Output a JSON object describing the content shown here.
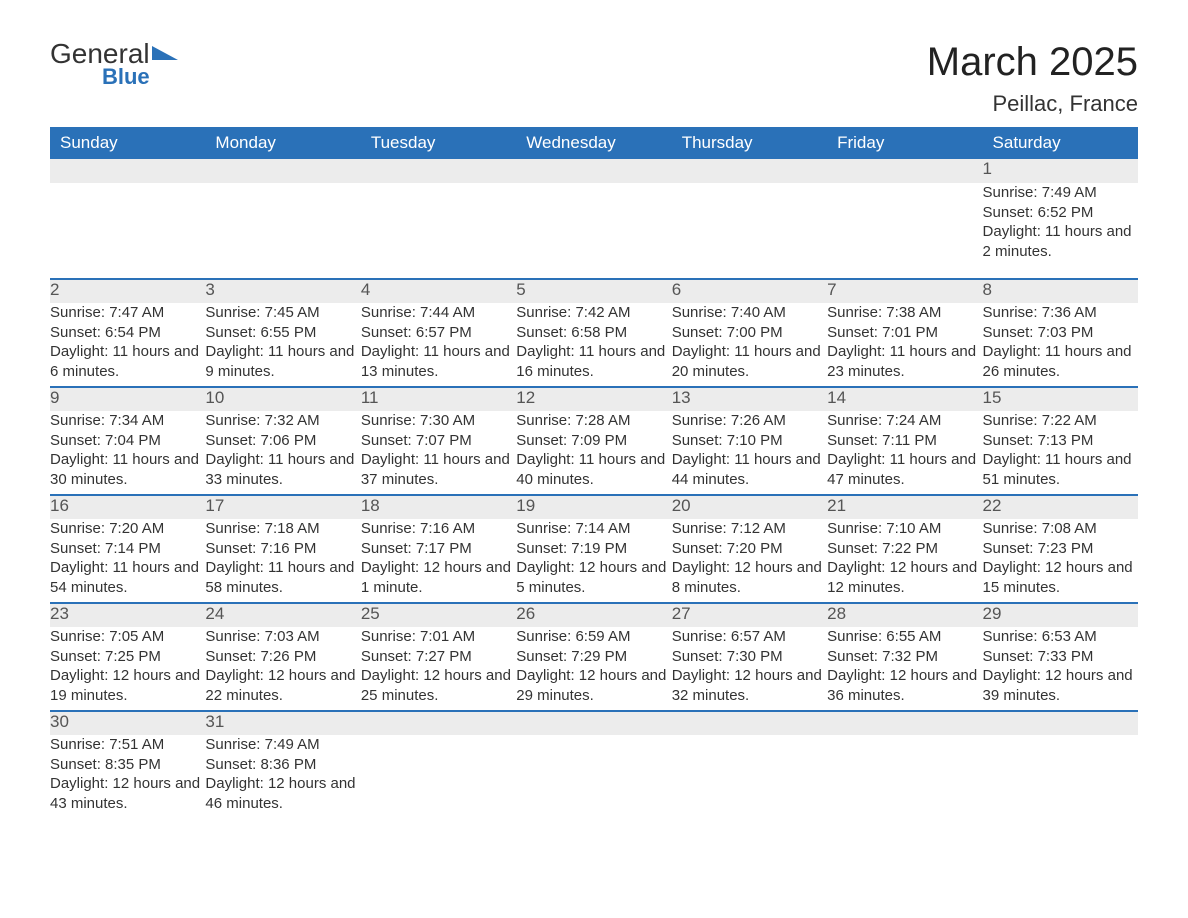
{
  "brand": {
    "word1": "General",
    "word2": "Blue",
    "tri_color": "#2a71b8"
  },
  "title": "March 2025",
  "location": "Peillac, France",
  "colors": {
    "header_bg": "#2a71b8",
    "header_text": "#ffffff",
    "daynum_bg": "#ececec",
    "row_divider": "#2a71b8",
    "body_text": "#333333"
  },
  "typography": {
    "title_fontsize": 40,
    "location_fontsize": 22,
    "header_fontsize": 17,
    "daynum_fontsize": 17,
    "detail_fontsize": 15
  },
  "weekdays": [
    "Sunday",
    "Monday",
    "Tuesday",
    "Wednesday",
    "Thursday",
    "Friday",
    "Saturday"
  ],
  "weeks": [
    [
      null,
      null,
      null,
      null,
      null,
      null,
      {
        "n": "1",
        "sunrise": "7:49 AM",
        "sunset": "6:52 PM",
        "daylight": "11 hours and 2 minutes."
      }
    ],
    [
      {
        "n": "2",
        "sunrise": "7:47 AM",
        "sunset": "6:54 PM",
        "daylight": "11 hours and 6 minutes."
      },
      {
        "n": "3",
        "sunrise": "7:45 AM",
        "sunset": "6:55 PM",
        "daylight": "11 hours and 9 minutes."
      },
      {
        "n": "4",
        "sunrise": "7:44 AM",
        "sunset": "6:57 PM",
        "daylight": "11 hours and 13 minutes."
      },
      {
        "n": "5",
        "sunrise": "7:42 AM",
        "sunset": "6:58 PM",
        "daylight": "11 hours and 16 minutes."
      },
      {
        "n": "6",
        "sunrise": "7:40 AM",
        "sunset": "7:00 PM",
        "daylight": "11 hours and 20 minutes."
      },
      {
        "n": "7",
        "sunrise": "7:38 AM",
        "sunset": "7:01 PM",
        "daylight": "11 hours and 23 minutes."
      },
      {
        "n": "8",
        "sunrise": "7:36 AM",
        "sunset": "7:03 PM",
        "daylight": "11 hours and 26 minutes."
      }
    ],
    [
      {
        "n": "9",
        "sunrise": "7:34 AM",
        "sunset": "7:04 PM",
        "daylight": "11 hours and 30 minutes."
      },
      {
        "n": "10",
        "sunrise": "7:32 AM",
        "sunset": "7:06 PM",
        "daylight": "11 hours and 33 minutes."
      },
      {
        "n": "11",
        "sunrise": "7:30 AM",
        "sunset": "7:07 PM",
        "daylight": "11 hours and 37 minutes."
      },
      {
        "n": "12",
        "sunrise": "7:28 AM",
        "sunset": "7:09 PM",
        "daylight": "11 hours and 40 minutes."
      },
      {
        "n": "13",
        "sunrise": "7:26 AM",
        "sunset": "7:10 PM",
        "daylight": "11 hours and 44 minutes."
      },
      {
        "n": "14",
        "sunrise": "7:24 AM",
        "sunset": "7:11 PM",
        "daylight": "11 hours and 47 minutes."
      },
      {
        "n": "15",
        "sunrise": "7:22 AM",
        "sunset": "7:13 PM",
        "daylight": "11 hours and 51 minutes."
      }
    ],
    [
      {
        "n": "16",
        "sunrise": "7:20 AM",
        "sunset": "7:14 PM",
        "daylight": "11 hours and 54 minutes."
      },
      {
        "n": "17",
        "sunrise": "7:18 AM",
        "sunset": "7:16 PM",
        "daylight": "11 hours and 58 minutes."
      },
      {
        "n": "18",
        "sunrise": "7:16 AM",
        "sunset": "7:17 PM",
        "daylight": "12 hours and 1 minute."
      },
      {
        "n": "19",
        "sunrise": "7:14 AM",
        "sunset": "7:19 PM",
        "daylight": "12 hours and 5 minutes."
      },
      {
        "n": "20",
        "sunrise": "7:12 AM",
        "sunset": "7:20 PM",
        "daylight": "12 hours and 8 minutes."
      },
      {
        "n": "21",
        "sunrise": "7:10 AM",
        "sunset": "7:22 PM",
        "daylight": "12 hours and 12 minutes."
      },
      {
        "n": "22",
        "sunrise": "7:08 AM",
        "sunset": "7:23 PM",
        "daylight": "12 hours and 15 minutes."
      }
    ],
    [
      {
        "n": "23",
        "sunrise": "7:05 AM",
        "sunset": "7:25 PM",
        "daylight": "12 hours and 19 minutes."
      },
      {
        "n": "24",
        "sunrise": "7:03 AM",
        "sunset": "7:26 PM",
        "daylight": "12 hours and 22 minutes."
      },
      {
        "n": "25",
        "sunrise": "7:01 AM",
        "sunset": "7:27 PM",
        "daylight": "12 hours and 25 minutes."
      },
      {
        "n": "26",
        "sunrise": "6:59 AM",
        "sunset": "7:29 PM",
        "daylight": "12 hours and 29 minutes."
      },
      {
        "n": "27",
        "sunrise": "6:57 AM",
        "sunset": "7:30 PM",
        "daylight": "12 hours and 32 minutes."
      },
      {
        "n": "28",
        "sunrise": "6:55 AM",
        "sunset": "7:32 PM",
        "daylight": "12 hours and 36 minutes."
      },
      {
        "n": "29",
        "sunrise": "6:53 AM",
        "sunset": "7:33 PM",
        "daylight": "12 hours and 39 minutes."
      }
    ],
    [
      {
        "n": "30",
        "sunrise": "7:51 AM",
        "sunset": "8:35 PM",
        "daylight": "12 hours and 43 minutes."
      },
      {
        "n": "31",
        "sunrise": "7:49 AM",
        "sunset": "8:36 PM",
        "daylight": "12 hours and 46 minutes."
      },
      null,
      null,
      null,
      null,
      null
    ]
  ],
  "labels": {
    "sunrise": "Sunrise:",
    "sunset": "Sunset:",
    "daylight": "Daylight:"
  }
}
